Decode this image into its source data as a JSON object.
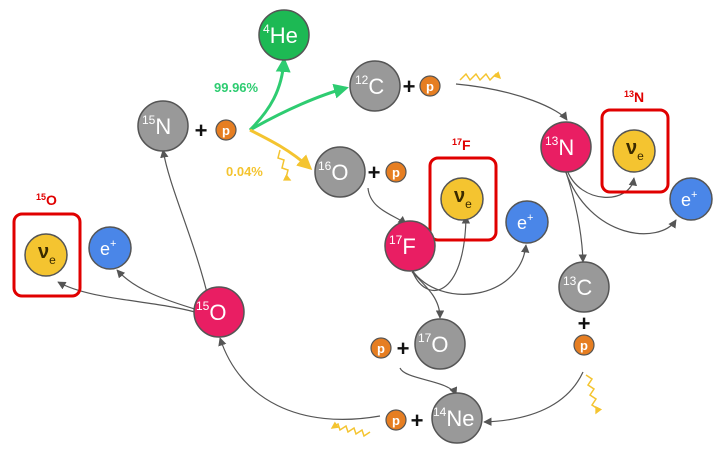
{
  "nodes": {
    "he4": {
      "mass": "4",
      "symbol": "He"
    },
    "c12": {
      "mass": "12",
      "symbol": "C"
    },
    "n15": {
      "mass": "15",
      "symbol": "N"
    },
    "o16": {
      "mass": "16",
      "symbol": "O"
    },
    "n13": {
      "mass": "13",
      "symbol": "N"
    },
    "f17": {
      "mass": "17",
      "symbol": "F"
    },
    "o15": {
      "mass": "15",
      "symbol": "O"
    },
    "c13": {
      "mass": "13",
      "symbol": "C"
    },
    "o17": {
      "mass": "17",
      "symbol": "O"
    },
    "ne14": {
      "mass": "14",
      "symbol": "Ne"
    }
  },
  "proton_label": "p",
  "plus": "+",
  "positron": {
    "symbol": "e",
    "charge": "+"
  },
  "neutrino": {
    "symbol": "ν",
    "subscript": "e"
  },
  "branches": {
    "major": "99.96%",
    "minor": "0.04%"
  },
  "decay_labels": {
    "o15": {
      "mass": "15",
      "symbol": "O"
    },
    "f17": {
      "mass": "17",
      "symbol": "F"
    },
    "n13": {
      "mass": "13",
      "symbol": "N"
    }
  },
  "colors": {
    "gray_nucleus": "#999999",
    "unstable_nucleus": "#e91e63",
    "helium": "#1db954",
    "positron": "#4a86e8",
    "neutrino": "#f4c430",
    "proton": "#e67e22",
    "box": "#e00000",
    "arrow": "#555555",
    "branch_green": "#2ecc71",
    "branch_yellow": "#f4c430"
  }
}
